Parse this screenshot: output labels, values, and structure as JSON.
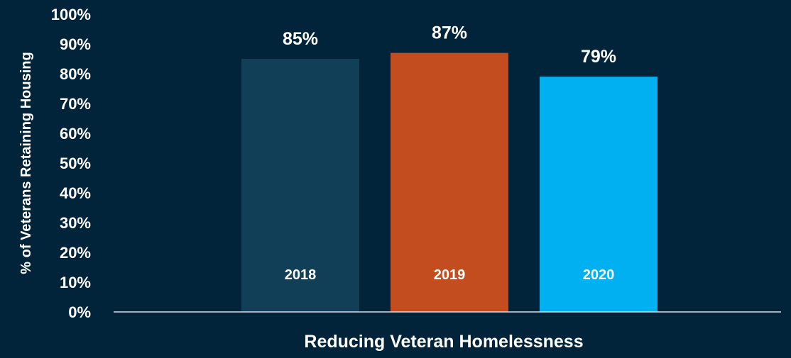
{
  "chart_data": {
    "type": "bar",
    "title": "",
    "xlabel": "Reducing Veteran Homelessness",
    "ylabel": "% of Veterans Retaining Housing",
    "ylim": [
      0,
      100
    ],
    "yticks": [
      "0%",
      "10%",
      "20%",
      "30%",
      "40%",
      "50%",
      "60%",
      "70%",
      "80%",
      "90%",
      "100%"
    ],
    "categories": [
      "2018",
      "2019",
      "2020"
    ],
    "values": [
      85,
      87,
      79
    ],
    "data_labels": [
      "85%",
      "87%",
      "79%"
    ],
    "colors": [
      "#123f58",
      "#c44d1f",
      "#00b0f0"
    ],
    "grid": false,
    "legend": "none"
  },
  "theme": {
    "background": "#02243a",
    "text": "#ffffff",
    "axis": "#d8dde2"
  }
}
